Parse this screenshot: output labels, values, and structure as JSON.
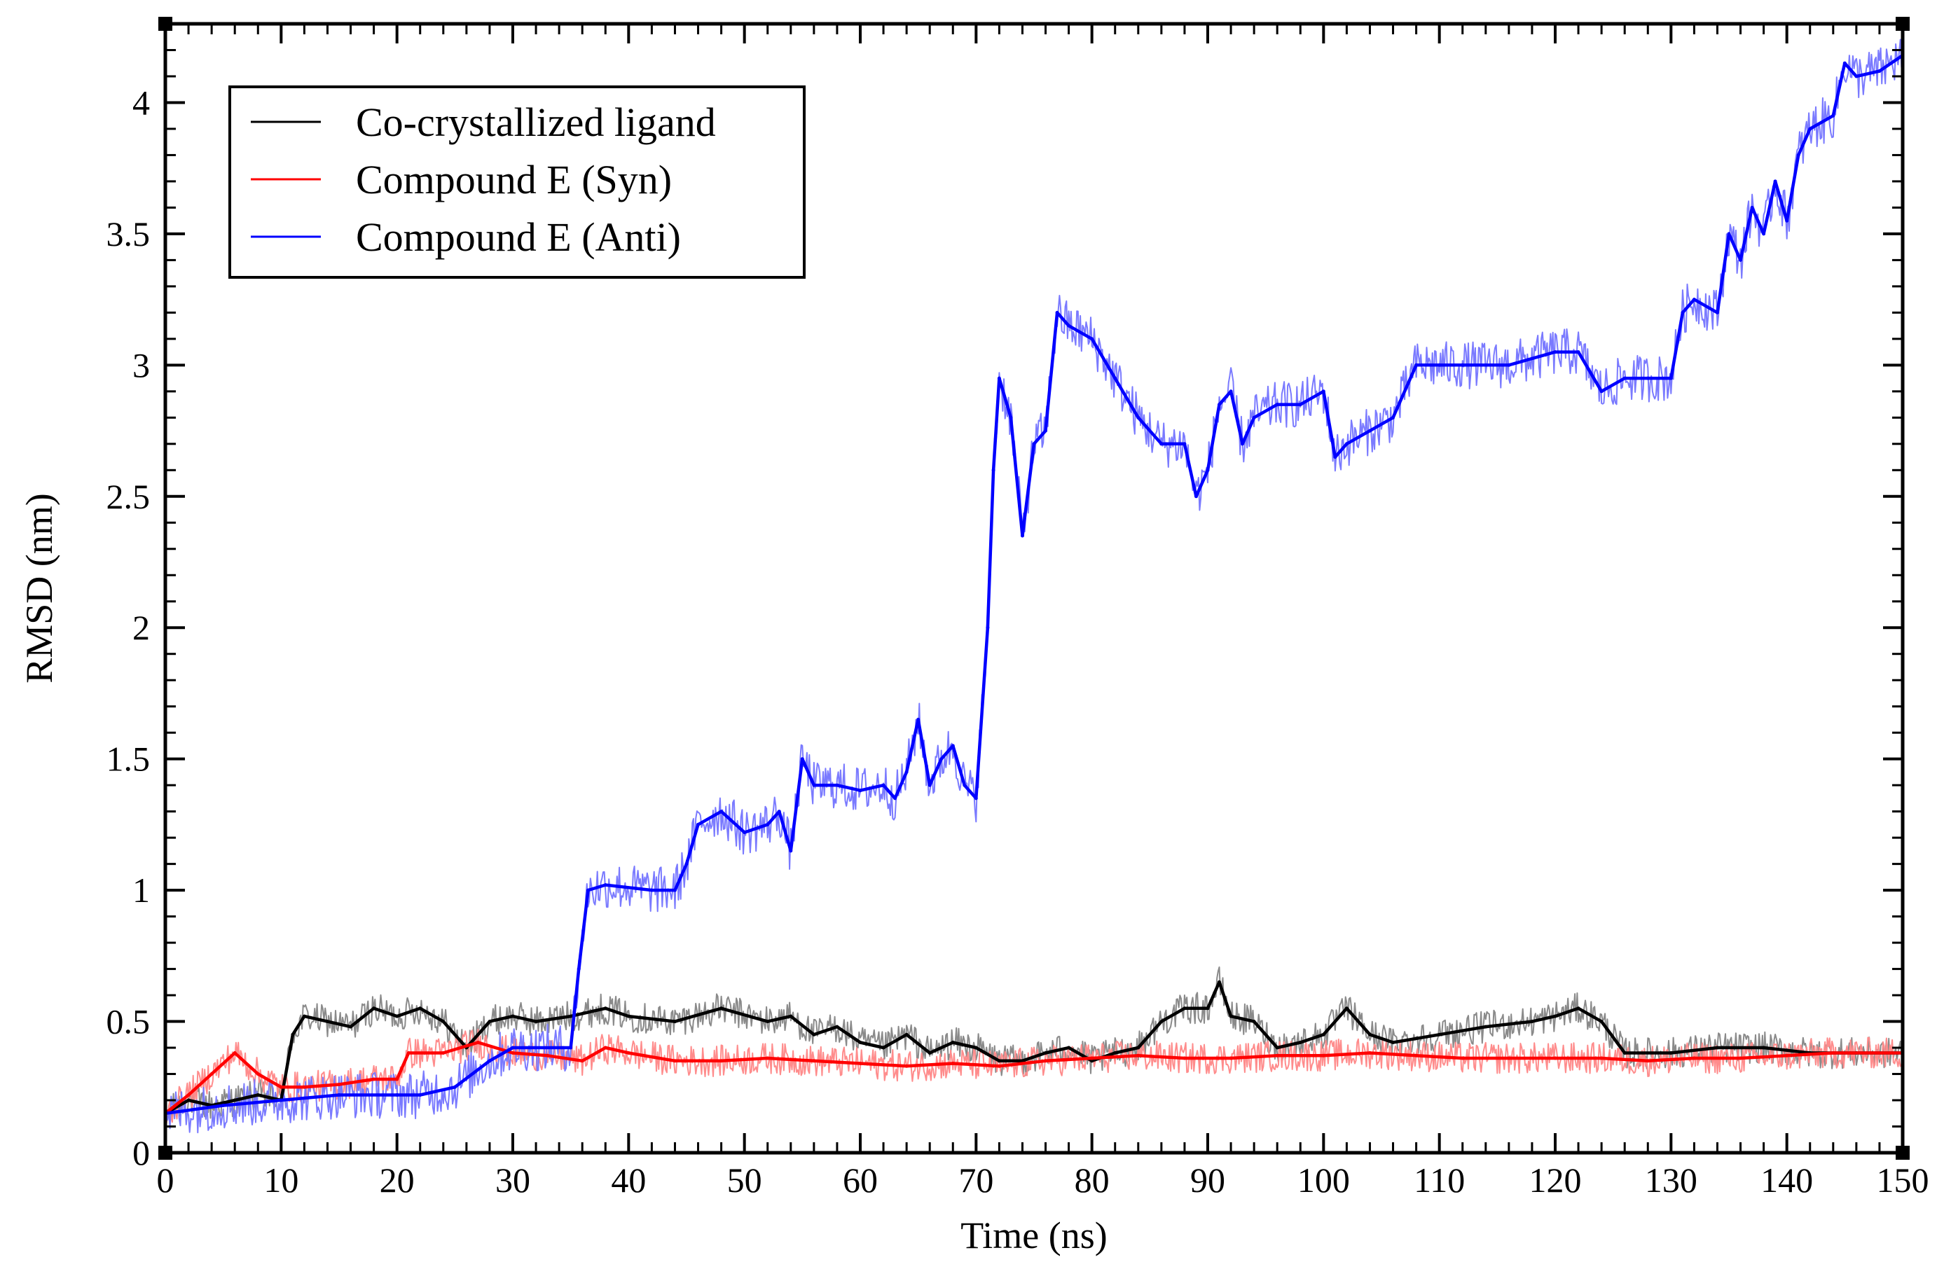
{
  "chart_data": {
    "type": "line",
    "title": "",
    "xlabel": "Time (ns)",
    "ylabel": "RMSD (nm)",
    "xlim": [
      0,
      150
    ],
    "ylim": [
      0,
      4.3
    ],
    "grid": false,
    "legend_position": "top-left",
    "x_ticks": [
      0,
      10,
      20,
      30,
      40,
      50,
      60,
      70,
      80,
      90,
      100,
      110,
      120,
      130,
      140,
      150
    ],
    "x_tick_labels": [
      "0",
      "10",
      "20",
      "30",
      "40",
      "50",
      "60",
      "70",
      "80",
      "90",
      "100",
      "110",
      "120",
      "130",
      "140",
      "150"
    ],
    "y_ticks": [
      0,
      0.5,
      1,
      1.5,
      2,
      2.5,
      3,
      3.5,
      4
    ],
    "y_tick_labels": [
      "0",
      "0.5",
      "1",
      "1.5",
      "2",
      "2.5",
      "3",
      "3.5",
      "4"
    ],
    "series": [
      {
        "name": "Co-crystallized ligand",
        "color": "#000000",
        "noise_color": "#8a8a8a",
        "noise": 0.06,
        "x": [
          0,
          2,
          4,
          6,
          8,
          10,
          11,
          12,
          14,
          16,
          18,
          20,
          22,
          24,
          26,
          28,
          30,
          32,
          35,
          38,
          40,
          44,
          48,
          52,
          54,
          56,
          58,
          60,
          62,
          64,
          66,
          68,
          70,
          72,
          74,
          76,
          78,
          80,
          82,
          84,
          86,
          88,
          90,
          91,
          92,
          94,
          96,
          98,
          100,
          102,
          104,
          106,
          110,
          114,
          118,
          120,
          122,
          124,
          126,
          130,
          134,
          138,
          142,
          146,
          150
        ],
        "y": [
          0.15,
          0.2,
          0.18,
          0.2,
          0.22,
          0.2,
          0.45,
          0.52,
          0.5,
          0.48,
          0.55,
          0.52,
          0.55,
          0.5,
          0.4,
          0.5,
          0.52,
          0.5,
          0.52,
          0.55,
          0.52,
          0.5,
          0.55,
          0.5,
          0.52,
          0.45,
          0.48,
          0.42,
          0.4,
          0.45,
          0.38,
          0.42,
          0.4,
          0.35,
          0.35,
          0.38,
          0.4,
          0.35,
          0.38,
          0.4,
          0.5,
          0.55,
          0.55,
          0.65,
          0.52,
          0.5,
          0.4,
          0.42,
          0.45,
          0.55,
          0.45,
          0.42,
          0.45,
          0.48,
          0.5,
          0.52,
          0.55,
          0.5,
          0.38,
          0.38,
          0.4,
          0.4,
          0.38,
          0.38,
          0.38
        ]
      },
      {
        "name": "Compound E (Syn)",
        "color": "#ff0000",
        "noise_color": "#ff8c8c",
        "noise": 0.06,
        "x": [
          0,
          2,
          4,
          6,
          8,
          10,
          12,
          15,
          18,
          20,
          21,
          24,
          27,
          30,
          33,
          36,
          38,
          40,
          44,
          48,
          52,
          56,
          60,
          64,
          68,
          72,
          76,
          80,
          84,
          88,
          92,
          96,
          100,
          104,
          108,
          112,
          116,
          120,
          124,
          128,
          132,
          136,
          140,
          144,
          150
        ],
        "y": [
          0.15,
          0.22,
          0.3,
          0.38,
          0.3,
          0.25,
          0.25,
          0.26,
          0.28,
          0.28,
          0.38,
          0.38,
          0.42,
          0.38,
          0.37,
          0.35,
          0.4,
          0.38,
          0.35,
          0.35,
          0.36,
          0.35,
          0.34,
          0.33,
          0.34,
          0.33,
          0.35,
          0.36,
          0.37,
          0.36,
          0.36,
          0.37,
          0.37,
          0.38,
          0.37,
          0.36,
          0.36,
          0.36,
          0.36,
          0.35,
          0.36,
          0.36,
          0.37,
          0.38,
          0.38
        ]
      },
      {
        "name": "Compound E (Anti)",
        "color": "#0000ff",
        "noise_color": "#7a7aff",
        "noise": 0.09,
        "x": [
          0,
          5,
          10,
          15,
          20,
          22,
          25,
          28,
          30,
          35,
          35.7,
          36.5,
          38,
          42,
          44,
          45,
          46,
          48,
          50,
          52,
          53,
          54,
          55,
          56,
          58,
          60,
          62,
          63,
          64,
          65,
          66,
          67,
          68,
          69,
          70,
          71,
          71.5,
          72,
          73,
          74,
          75,
          76,
          77,
          78,
          80,
          82,
          84,
          86,
          88,
          89,
          90,
          91,
          92,
          93,
          94,
          96,
          98,
          100,
          101,
          102,
          104,
          106,
          108,
          110,
          112,
          116,
          120,
          122,
          124,
          126,
          128,
          130,
          131,
          132,
          134,
          135,
          136,
          137,
          138,
          139,
          140,
          141,
          142,
          144,
          145,
          146,
          148,
          150
        ],
        "y": [
          0.15,
          0.18,
          0.2,
          0.22,
          0.22,
          0.22,
          0.25,
          0.35,
          0.4,
          0.4,
          0.7,
          1.0,
          1.02,
          1.0,
          1.0,
          1.1,
          1.25,
          1.3,
          1.22,
          1.25,
          1.3,
          1.15,
          1.5,
          1.4,
          1.4,
          1.38,
          1.4,
          1.35,
          1.45,
          1.65,
          1.4,
          1.5,
          1.55,
          1.4,
          1.35,
          2.0,
          2.6,
          2.95,
          2.8,
          2.35,
          2.7,
          2.75,
          3.2,
          3.15,
          3.1,
          2.95,
          2.8,
          2.7,
          2.7,
          2.5,
          2.6,
          2.85,
          2.9,
          2.7,
          2.8,
          2.85,
          2.85,
          2.9,
          2.65,
          2.7,
          2.75,
          2.8,
          3.0,
          3.0,
          3.0,
          3.0,
          3.05,
          3.05,
          2.9,
          2.95,
          2.95,
          2.95,
          3.2,
          3.25,
          3.2,
          3.5,
          3.4,
          3.6,
          3.5,
          3.7,
          3.55,
          3.8,
          3.9,
          3.95,
          4.15,
          4.1,
          4.12,
          4.18
        ]
      }
    ]
  }
}
